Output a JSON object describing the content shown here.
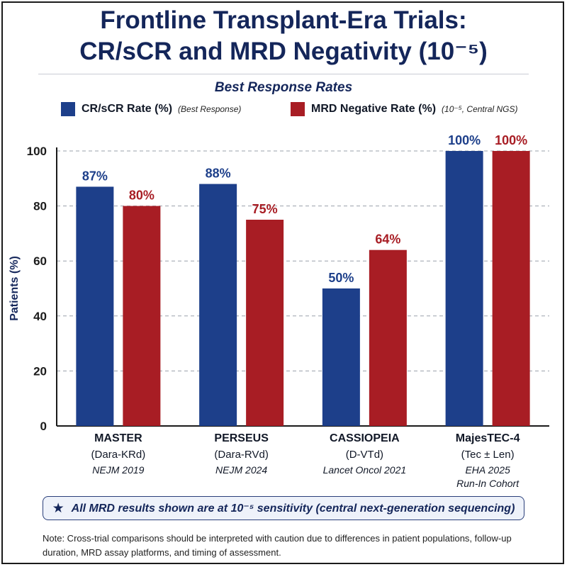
{
  "title_line1": "Frontline Transplant-Era Trials:",
  "title_line2": "CR/sCR and MRD Negativity (10⁻⁵)",
  "legend": {
    "items": [
      {
        "label": "CR/sCR Rate (%)",
        "note": "(Best Response)",
        "color": "#1d3f8a"
      },
      {
        "label": "MRD Negative Rate (%)",
        "note": "(10⁻⁵, Central NGS)",
        "color": "#a81d24"
      }
    ]
  },
  "chart_data": {
    "type": "bar",
    "title": "Best Response Rates",
    "ylabel": "Patients (%)",
    "xlabel": "",
    "ylim": [
      0,
      100
    ],
    "yticks": [
      0,
      20,
      40,
      60,
      80,
      100
    ],
    "grid": true,
    "legend_position": "top",
    "categories": [
      {
        "name": "MASTER",
        "regimen": "(Dara-KRd)",
        "source": [
          "NEJM 2019"
        ]
      },
      {
        "name": "PERSEUS",
        "regimen": "(Dara-RVd)",
        "source": [
          "NEJM 2024"
        ]
      },
      {
        "name": "CASSIOPEIA",
        "regimen": "(D-VTd)",
        "source": [
          "Lancet Oncol 2021"
        ]
      },
      {
        "name": "MajesTEC-4",
        "regimen": "(Tec ± Len)",
        "source": [
          "EHA 2025",
          "Run-In Cohort"
        ]
      }
    ],
    "series": [
      {
        "name": "CR/sCR Rate (%)",
        "color": "#1d3f8a",
        "values": [
          87,
          88,
          50,
          100
        ],
        "labels": [
          "87%",
          "88%",
          "50%",
          "100%"
        ]
      },
      {
        "name": "MRD Negative Rate (%)",
        "color": "#a81d24",
        "values": [
          80,
          75,
          64,
          100
        ],
        "labels": [
          "80%",
          "75%",
          "64%",
          "100%"
        ]
      }
    ]
  },
  "callout": {
    "star": "★",
    "text": "All MRD results shown are at 10⁻⁵ sensitivity (central next-generation sequencing)"
  },
  "note": "Note: Cross-trial comparisons should be interpreted with caution due to differences in patient populations, follow-up duration, MRD assay platforms, and timing of assessment."
}
